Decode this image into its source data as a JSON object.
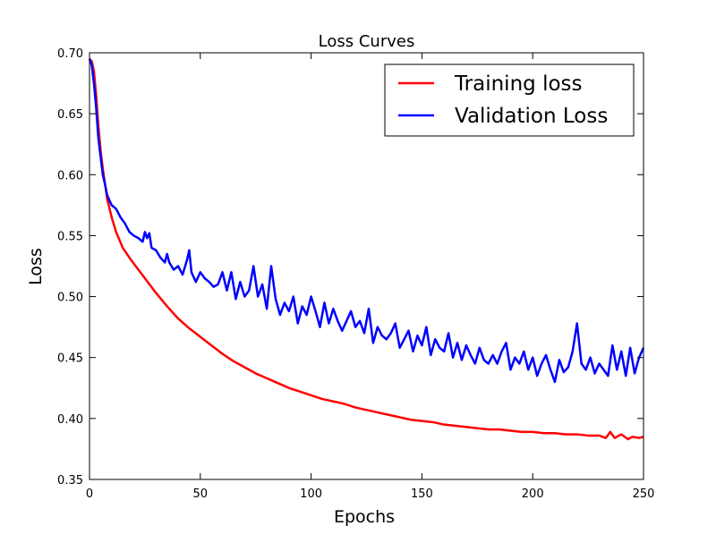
{
  "chart_data": {
    "type": "line",
    "title": "Loss Curves",
    "xlabel": "Epochs",
    "ylabel": "Loss",
    "xlim": [
      0,
      250
    ],
    "ylim": [
      0.35,
      0.7
    ],
    "xticks": [
      "0",
      "50",
      "100",
      "150",
      "200",
      "250"
    ],
    "yticks": [
      "0.35",
      "0.40",
      "0.45",
      "0.50",
      "0.55",
      "0.60",
      "0.65",
      "0.70"
    ],
    "grid": false,
    "legend_position": "top-right",
    "series": [
      {
        "name": "Training loss",
        "color": "#ff0000",
        "x": [
          0,
          1,
          2,
          3,
          4,
          5,
          6,
          8,
          10,
          12,
          15,
          18,
          20,
          25,
          30,
          35,
          40,
          45,
          50,
          55,
          60,
          65,
          70,
          75,
          80,
          85,
          90,
          95,
          100,
          105,
          110,
          115,
          120,
          125,
          130,
          135,
          140,
          145,
          150,
          155,
          160,
          165,
          170,
          175,
          180,
          185,
          190,
          195,
          200,
          205,
          210,
          215,
          220,
          225,
          230,
          233,
          235,
          237,
          240,
          243,
          245,
          248,
          250
        ],
        "y": [
          0.695,
          0.693,
          0.685,
          0.665,
          0.64,
          0.62,
          0.605,
          0.58,
          0.565,
          0.553,
          0.54,
          0.532,
          0.527,
          0.515,
          0.503,
          0.492,
          0.482,
          0.474,
          0.467,
          0.46,
          0.453,
          0.447,
          0.442,
          0.437,
          0.433,
          0.429,
          0.425,
          0.422,
          0.419,
          0.416,
          0.414,
          0.412,
          0.409,
          0.407,
          0.405,
          0.403,
          0.401,
          0.399,
          0.398,
          0.397,
          0.395,
          0.394,
          0.393,
          0.392,
          0.391,
          0.391,
          0.39,
          0.389,
          0.389,
          0.388,
          0.388,
          0.387,
          0.387,
          0.386,
          0.386,
          0.384,
          0.389,
          0.384,
          0.387,
          0.383,
          0.385,
          0.384,
          0.385
        ]
      },
      {
        "name": "Validation Loss",
        "color": "#0000ff",
        "x": [
          0,
          1,
          2,
          3,
          4,
          5,
          6,
          7,
          8,
          10,
          12,
          14,
          16,
          18,
          20,
          22,
          24,
          25,
          26,
          27,
          28,
          30,
          32,
          34,
          35,
          36,
          38,
          40,
          42,
          44,
          45,
          46,
          48,
          50,
          52,
          54,
          56,
          58,
          60,
          62,
          64,
          66,
          68,
          70,
          72,
          74,
          76,
          78,
          80,
          82,
          84,
          86,
          88,
          90,
          92,
          94,
          96,
          98,
          100,
          102,
          104,
          106,
          108,
          110,
          112,
          114,
          116,
          118,
          120,
          122,
          124,
          126,
          128,
          130,
          132,
          134,
          136,
          138,
          140,
          142,
          144,
          146,
          148,
          150,
          152,
          154,
          156,
          158,
          160,
          162,
          164,
          166,
          168,
          170,
          172,
          174,
          176,
          178,
          180,
          182,
          184,
          186,
          188,
          190,
          192,
          194,
          196,
          198,
          200,
          202,
          204,
          206,
          208,
          210,
          212,
          214,
          216,
          218,
          220,
          222,
          224,
          226,
          228,
          230,
          232,
          234,
          236,
          238,
          240,
          242,
          244,
          246,
          248,
          250
        ],
        "y": [
          0.695,
          0.69,
          0.675,
          0.655,
          0.63,
          0.615,
          0.6,
          0.592,
          0.583,
          0.575,
          0.572,
          0.565,
          0.56,
          0.553,
          0.55,
          0.548,
          0.545,
          0.553,
          0.548,
          0.552,
          0.54,
          0.538,
          0.532,
          0.528,
          0.535,
          0.528,
          0.522,
          0.525,
          0.518,
          0.53,
          0.538,
          0.52,
          0.512,
          0.52,
          0.515,
          0.512,
          0.508,
          0.51,
          0.52,
          0.505,
          0.52,
          0.498,
          0.512,
          0.5,
          0.505,
          0.525,
          0.5,
          0.51,
          0.49,
          0.525,
          0.498,
          0.485,
          0.495,
          0.488,
          0.5,
          0.478,
          0.492,
          0.485,
          0.5,
          0.488,
          0.475,
          0.495,
          0.478,
          0.49,
          0.48,
          0.472,
          0.48,
          0.488,
          0.475,
          0.48,
          0.47,
          0.49,
          0.462,
          0.475,
          0.468,
          0.465,
          0.47,
          0.478,
          0.458,
          0.465,
          0.472,
          0.455,
          0.468,
          0.46,
          0.475,
          0.452,
          0.465,
          0.458,
          0.455,
          0.47,
          0.45,
          0.462,
          0.448,
          0.46,
          0.452,
          0.445,
          0.458,
          0.448,
          0.445,
          0.452,
          0.445,
          0.455,
          0.462,
          0.44,
          0.45,
          0.445,
          0.455,
          0.44,
          0.45,
          0.435,
          0.445,
          0.452,
          0.44,
          0.43,
          0.448,
          0.438,
          0.442,
          0.455,
          0.478,
          0.445,
          0.44,
          0.45,
          0.437,
          0.445,
          0.44,
          0.435,
          0.46,
          0.44,
          0.455,
          0.435,
          0.458,
          0.437,
          0.45,
          0.458
        ]
      }
    ]
  }
}
